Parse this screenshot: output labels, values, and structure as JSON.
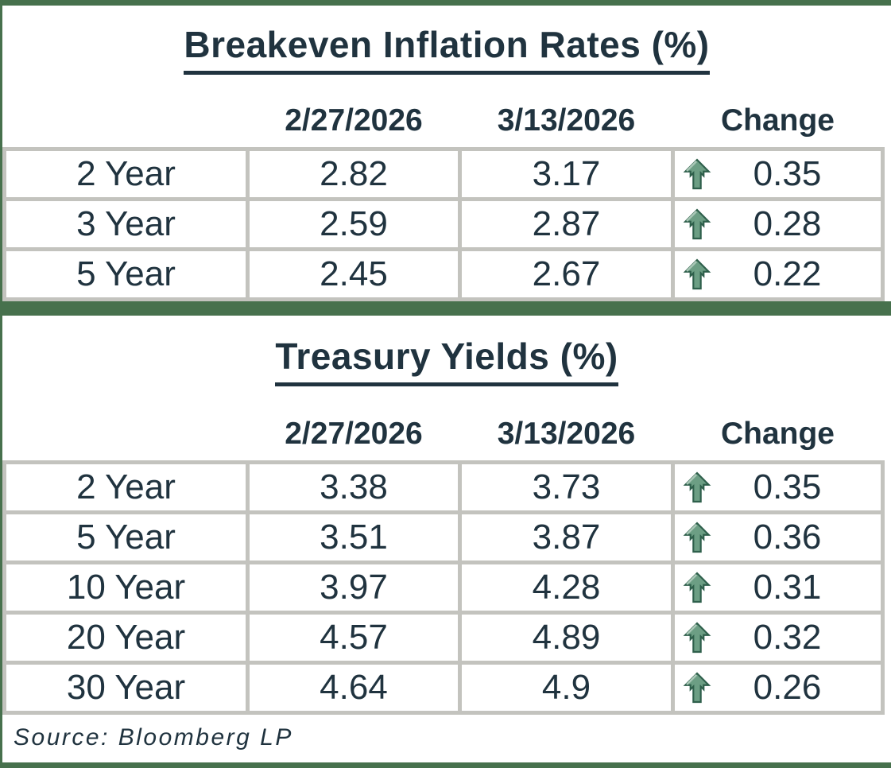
{
  "colors": {
    "accent_green": "#47714D",
    "grid_gray": "#C3C3BE",
    "text_dark": "#20333F",
    "arrow_fill": "#6C9E84",
    "arrow_outline": "#2E5F4B",
    "arrow_highlight": "#A9C7B6"
  },
  "tables": [
    {
      "title": "Breakeven Inflation Rates (%)",
      "columns": {
        "label": "",
        "date1": "2/27/2026",
        "date2": "3/13/2026",
        "change": "Change"
      },
      "rows": [
        {
          "label": "2 Year",
          "v1": "2.82",
          "v2": "3.17",
          "change": "0.35",
          "direction": "up"
        },
        {
          "label": "3 Year",
          "v1": "2.59",
          "v2": "2.87",
          "change": "0.28",
          "direction": "up"
        },
        {
          "label": "5 Year",
          "v1": "2.45",
          "v2": "2.67",
          "change": "0.22",
          "direction": "up"
        }
      ]
    },
    {
      "title": "Treasury Yields (%)",
      "columns": {
        "label": "",
        "date1": "2/27/2026",
        "date2": "3/13/2026",
        "change": "Change"
      },
      "rows": [
        {
          "label": "2 Year",
          "v1": "3.38",
          "v2": "3.73",
          "change": "0.35",
          "direction": "up"
        },
        {
          "label": "5 Year",
          "v1": "3.51",
          "v2": "3.87",
          "change": "0.36",
          "direction": "up"
        },
        {
          "label": "10 Year",
          "v1": "3.97",
          "v2": "4.28",
          "change": "0.31",
          "direction": "up"
        },
        {
          "label": "20 Year",
          "v1": "4.57",
          "v2": "4.89",
          "change": "0.32",
          "direction": "up"
        },
        {
          "label": "30 Year",
          "v1": "4.64",
          "v2": "4.9",
          "change": "0.26",
          "direction": "up"
        }
      ]
    }
  ],
  "footer": {
    "source": "Source: Bloomberg LP"
  },
  "chart_data": [
    {
      "type": "table",
      "title": "Breakeven Inflation Rates (%)",
      "columns": [
        "",
        "2/27/2026",
        "3/13/2026",
        "Change"
      ],
      "rows": [
        [
          "2 Year",
          2.82,
          3.17,
          0.35
        ],
        [
          "3 Year",
          2.59,
          2.87,
          0.28
        ],
        [
          "5 Year",
          2.45,
          2.67,
          0.22
        ]
      ],
      "change_direction": "up"
    },
    {
      "type": "table",
      "title": "Treasury Yields (%)",
      "columns": [
        "",
        "2/27/2026",
        "3/13/2026",
        "Change"
      ],
      "rows": [
        [
          "2 Year",
          3.38,
          3.73,
          0.35
        ],
        [
          "5 Year",
          3.51,
          3.87,
          0.36
        ],
        [
          "10 Year",
          3.97,
          4.28,
          0.31
        ],
        [
          "20 Year",
          4.57,
          4.89,
          0.32
        ],
        [
          "30 Year",
          4.64,
          4.9,
          0.26
        ]
      ],
      "change_direction": "up"
    }
  ]
}
